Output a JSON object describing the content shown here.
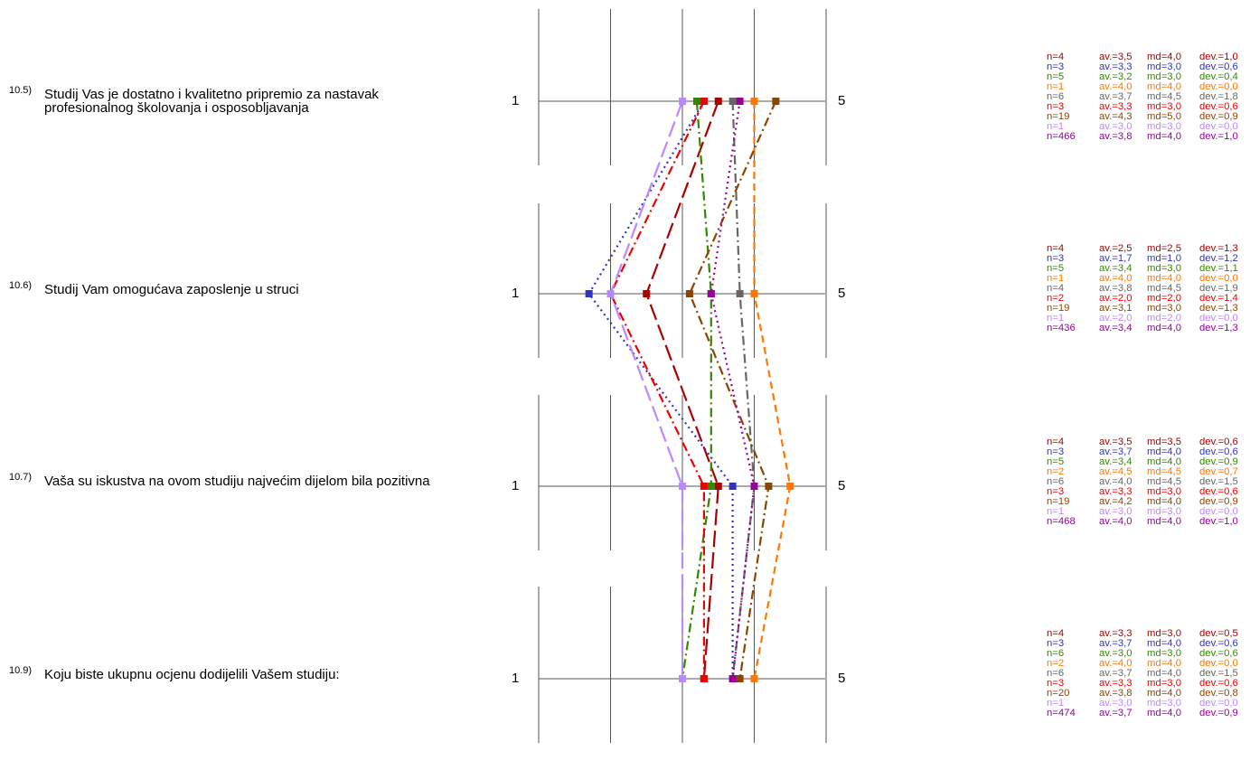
{
  "chart_data": {
    "type": "line",
    "scale_min_label": "1",
    "scale_max_label": "5",
    "questions": [
      {
        "num": "10.5)",
        "text": "Studij Vas je dostatno i kvalitetno pripremio za nastavak profesionalnog školovanja i osposobljavanja"
      },
      {
        "num": "10.6)",
        "text": "Studij Vam omogućava  zaposlenje u struci"
      },
      {
        "num": "10.7)",
        "text": "Vaša su iskustva na ovom studiju najvećim dijelom bila pozitivna"
      },
      {
        "num": "10.9)",
        "text": "Koju biste ukupnu ocjenu dodijelili Vašem studiju:"
      }
    ],
    "series": [
      {
        "color": "#aa0000",
        "dash": "long",
        "values": [
          3.5,
          2.5,
          3.5,
          3.3
        ],
        "stats": [
          [
            "n=4",
            "av.=3,5",
            "md=4,0",
            "dev.=1,0"
          ],
          [
            "n=4",
            "av.=2,5",
            "md=2,5",
            "dev.=1,3"
          ],
          [
            "n=4",
            "av.=3,5",
            "md=3,5",
            "dev.=0,6"
          ],
          [
            "n=4",
            "av.=3,3",
            "md=3,0",
            "dev.=0,5"
          ]
        ]
      },
      {
        "color": "#3333bb",
        "dash": "dot",
        "values": [
          3.3,
          1.7,
          3.7,
          3.7
        ],
        "stats": [
          [
            "n=3",
            "av.=3,3",
            "md=3,0",
            "dev.=0,6"
          ],
          [
            "n=3",
            "av.=1,7",
            "md=1,0",
            "dev.=1,2"
          ],
          [
            "n=3",
            "av.=3,7",
            "md=4,0",
            "dev.=0,6"
          ],
          [
            "n=3",
            "av.=3,7",
            "md=4,0",
            "dev.=0,6"
          ]
        ]
      },
      {
        "color": "#338800",
        "dash": "dashdot",
        "values": [
          3.2,
          3.4,
          3.4,
          3.0
        ],
        "stats": [
          [
            "n=5",
            "av.=3,2",
            "md=3,0",
            "dev.=0,4"
          ],
          [
            "n=5",
            "av.=3,4",
            "md=3,0",
            "dev.=1,1"
          ],
          [
            "n=5",
            "av.=3,4",
            "md=4,0",
            "dev.=0,9"
          ],
          [
            "n=6",
            "av.=3,0",
            "md=3,0",
            "dev.=0,6"
          ]
        ]
      },
      {
        "color": "#ff7700",
        "dash": "dash",
        "values": [
          4.0,
          4.0,
          4.5,
          4.0
        ],
        "stats": [
          [
            "n=1",
            "av.=4,0",
            "md=4,0",
            "dev.=0,0"
          ],
          [
            "n=1",
            "av.=4,0",
            "md=4,0",
            "dev.=0,0"
          ],
          [
            "n=2",
            "av.=4,5",
            "md=4,5",
            "dev.=0,7"
          ],
          [
            "n=2",
            "av.=4,0",
            "md=4,0",
            "dev.=0,0"
          ]
        ]
      },
      {
        "color": "#666666",
        "dash": "dashdot",
        "values": [
          3.7,
          3.8,
          4.0,
          3.7
        ],
        "stats": [
          [
            "n=6",
            "av.=3,7",
            "md=4,5",
            "dev.=1,8"
          ],
          [
            "n=4",
            "av.=3,8",
            "md=4,5",
            "dev.=1,9"
          ],
          [
            "n=6",
            "av.=4,0",
            "md=4,5",
            "dev.=1,5"
          ],
          [
            "n=6",
            "av.=3,7",
            "md=4,0",
            "dev.=1,5"
          ]
        ]
      },
      {
        "color": "#ee0000",
        "dash": "dashdot",
        "values": [
          3.3,
          2.0,
          3.3,
          3.3
        ],
        "stats": [
          [
            "n=3",
            "av.=3,3",
            "md=3,0",
            "dev.=0,6"
          ],
          [
            "n=2",
            "av.=2,0",
            "md=2,0",
            "dev.=1,4"
          ],
          [
            "n=3",
            "av.=3,3",
            "md=3,0",
            "dev.=0,6"
          ],
          [
            "n=3",
            "av.=3,3",
            "md=3,0",
            "dev.=0,6"
          ]
        ]
      },
      {
        "color": "#8b4500",
        "dash": "dashdot",
        "values": [
          4.3,
          3.1,
          4.2,
          3.8
        ],
        "stats": [
          [
            "n=19",
            "av.=4,3",
            "md=5,0",
            "dev.=0,9"
          ],
          [
            "n=19",
            "av.=3,1",
            "md=3,0",
            "dev.=1,3"
          ],
          [
            "n=19",
            "av.=4,2",
            "md=4,0",
            "dev.=0,9"
          ],
          [
            "n=20",
            "av.=3,8",
            "md=4,0",
            "dev.=0,8"
          ]
        ]
      },
      {
        "color": "#bb88ff",
        "dash": "long",
        "values": [
          3.0,
          2.0,
          3.0,
          3.0
        ],
        "stats": [
          [
            "n=1",
            "av.=3,0",
            "md=3,0",
            "dev.=0,0"
          ],
          [
            "n=1",
            "av.=2,0",
            "md=2,0",
            "dev.=0,0"
          ],
          [
            "n=1",
            "av.=3,0",
            "md=3,0",
            "dev.=0,0"
          ],
          [
            "n=1",
            "av.=3,0",
            "md=3,0",
            "dev.=0,0"
          ]
        ]
      },
      {
        "color": "#990099",
        "dash": "dot",
        "values": [
          3.8,
          3.4,
          4.0,
          3.7
        ],
        "stats": [
          [
            "n=466",
            "av.=3,8",
            "md=4,0",
            "dev.=1,0"
          ],
          [
            "n=436",
            "av.=3,4",
            "md=4,0",
            "dev.=1,3"
          ],
          [
            "n=468",
            "av.=4,0",
            "md=4,0",
            "dev.=1,0"
          ],
          [
            "n=474",
            "av.=3,7",
            "md=4,0",
            "dev.=0,9"
          ]
        ]
      }
    ]
  }
}
